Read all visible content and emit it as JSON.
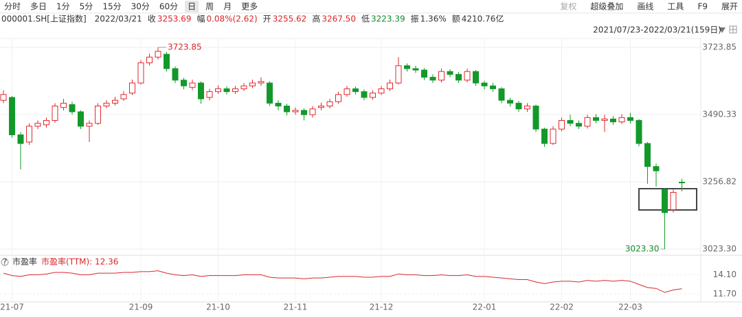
{
  "toolbar": {
    "tabs": [
      "分时",
      "多日",
      "1分",
      "5分",
      "15分",
      "30分",
      "60分",
      "日",
      "周",
      "月",
      "更多"
    ],
    "selected": 7,
    "tools": [
      "复权",
      "超级叠加",
      "画线",
      "工具",
      "F9",
      "展开"
    ]
  },
  "info": {
    "code": "000001.SH[上证指数]",
    "date": "2022/03/21",
    "items": [
      {
        "label": "收",
        "value": "3253.69",
        "color": "#d9262b"
      },
      {
        "label": "幅",
        "value": "0.08%(2.62)",
        "color": "#d9262b"
      },
      {
        "label": "开",
        "value": "3255.62",
        "color": "#d9262b"
      },
      {
        "label": "高",
        "value": "3267.50",
        "color": "#d9262b"
      },
      {
        "label": "低",
        "value": "3223.39",
        "color": "#138a2c"
      },
      {
        "label": "振",
        "value": "1.36%",
        "color": "#333333"
      },
      {
        "label": "额",
        "value": "4210.76亿",
        "color": "#333333"
      }
    ]
  },
  "chart_data": [
    {
      "type": "candlestick",
      "range_label": "2021/07/23-2022/03/21(159日)",
      "high_label": "3723.85",
      "low_label": "3023.30",
      "up_color": "#e0262c",
      "down_color": "#13992a",
      "grid": true,
      "categories": [
        null,
        "21-07",
        null,
        null,
        null,
        null,
        null,
        null,
        null,
        null,
        null,
        null,
        null,
        null,
        null,
        null,
        "21-09",
        null,
        null,
        null,
        null,
        null,
        null,
        null,
        null,
        "21-10",
        null,
        null,
        null,
        null,
        null,
        null,
        null,
        null,
        "21-11",
        null,
        null,
        null,
        null,
        null,
        null,
        null,
        null,
        null,
        "21-12",
        null,
        null,
        null,
        null,
        null,
        null,
        null,
        null,
        null,
        null,
        null,
        "22-01",
        null,
        null,
        null,
        null,
        null,
        null,
        null,
        null,
        "22-02",
        null,
        null,
        null,
        null,
        null,
        null,
        null,
        "22-03",
        null,
        null,
        null,
        null,
        null,
        null
      ],
      "open": [
        3540,
        3550,
        3420,
        3395,
        3450,
        3455,
        3470,
        3515,
        3525,
        3500,
        3450,
        3460,
        3520,
        3530,
        3545,
        3565,
        3600,
        3670,
        3690,
        3700,
        3650,
        3610,
        3585,
        3600,
        3550,
        3570,
        3580,
        3570,
        3580,
        3590,
        3600,
        3600,
        3530,
        3520,
        3500,
        3505,
        3490,
        3515,
        3520,
        3535,
        3560,
        3580,
        3570,
        3550,
        3565,
        3580,
        3600,
        3660,
        3650,
        3645,
        3620,
        3610,
        3640,
        3630,
        3610,
        3640,
        3600,
        3590,
        3580,
        3540,
        3530,
        3510,
        3520,
        3440,
        3390,
        3440,
        3470,
        3460,
        3450,
        3480,
        3470,
        3475,
        3465,
        3480,
        3470,
        3390,
        3310,
        3230,
        3160,
        3255.62
      ],
      "high": [
        3575,
        3555,
        3430,
        3460,
        3470,
        3480,
        3530,
        3545,
        3535,
        3505,
        3470,
        3530,
        3540,
        3552,
        3572,
        3612,
        3680,
        3702,
        3723.85,
        3708,
        3658,
        3618,
        3612,
        3606,
        3580,
        3592,
        3588,
        3590,
        3600,
        3612,
        3620,
        3606,
        3540,
        3528,
        3515,
        3512,
        3520,
        3532,
        3545,
        3570,
        3590,
        3588,
        3578,
        3575,
        3590,
        3612,
        3690,
        3668,
        3660,
        3652,
        3630,
        3650,
        3648,
        3638,
        3650,
        3645,
        3608,
        3600,
        3586,
        3548,
        3538,
        3530,
        3525,
        3445,
        3450,
        3480,
        3490,
        3470,
        3490,
        3492,
        3490,
        3485,
        3492,
        3496,
        3475,
        3395,
        3320,
        3235,
        3230,
        3267.5
      ],
      "low": [
        3530,
        3410,
        3300,
        3385,
        3440,
        3445,
        3462,
        3505,
        3490,
        3440,
        3395,
        3455,
        3512,
        3522,
        3538,
        3558,
        3595,
        3660,
        3682,
        3640,
        3600,
        3578,
        3575,
        3528,
        3540,
        3562,
        3560,
        3562,
        3572,
        3582,
        3590,
        3520,
        3505,
        3488,
        3490,
        3470,
        3480,
        3505,
        3512,
        3528,
        3552,
        3560,
        3540,
        3542,
        3558,
        3572,
        3595,
        3640,
        3635,
        3610,
        3600,
        3602,
        3620,
        3600,
        3602,
        3590,
        3578,
        3570,
        3530,
        3518,
        3500,
        3500,
        3430,
        3378,
        3385,
        3432,
        3450,
        3440,
        3442,
        3460,
        3430,
        3455,
        3458,
        3460,
        3380,
        3250,
        3240,
        3023.3,
        3150,
        3223.39
      ],
      "close": [
        3560,
        3420,
        3390,
        3450,
        3460,
        3470,
        3520,
        3530,
        3500,
        3450,
        3460,
        3520,
        3530,
        3540,
        3560,
        3600,
        3670,
        3690,
        3710,
        3650,
        3610,
        3590,
        3600,
        3545,
        3570,
        3580,
        3570,
        3580,
        3590,
        3600,
        3605,
        3530,
        3520,
        3500,
        3505,
        3490,
        3510,
        3520,
        3535,
        3560,
        3580,
        3570,
        3550,
        3565,
        3580,
        3600,
        3660,
        3650,
        3645,
        3620,
        3610,
        3640,
        3630,
        3610,
        3640,
        3600,
        3590,
        3580,
        3540,
        3530,
        3510,
        3520,
        3440,
        3390,
        3440,
        3470,
        3460,
        3450,
        3480,
        3470,
        3475,
        3465,
        3480,
        3470,
        3390,
        3310,
        3295,
        3150,
        3220,
        3253.69
      ],
      "ylim": [
        3001.8,
        3764.4
      ],
      "yticks": [
        3723.85,
        3490.33,
        3256.82,
        {
          "value": 3023.3,
          "label": "3023.30"
        }
      ]
    },
    {
      "type": "line",
      "icon": "?",
      "title": "市盈率",
      "legend": "市盈率(TTM): 12.36",
      "color": "#d9262b",
      "values": [
        14.3,
        14.0,
        13.9,
        14.1,
        14.1,
        14.2,
        14.4,
        14.4,
        14.3,
        14.1,
        14.1,
        14.3,
        14.3,
        14.3,
        14.4,
        14.4,
        14.5,
        14.5,
        14.6,
        14.3,
        14.1,
        14.0,
        14.1,
        13.9,
        14.0,
        14.0,
        14.0,
        14.0,
        14.1,
        14.1,
        14.1,
        13.8,
        13.7,
        13.7,
        13.7,
        13.6,
        13.7,
        13.7,
        13.8,
        13.9,
        13.9,
        13.9,
        13.8,
        13.8,
        13.9,
        13.9,
        14.2,
        14.1,
        14.1,
        14.0,
        14.0,
        14.1,
        14.0,
        14.0,
        14.1,
        13.9,
        13.9,
        13.8,
        13.7,
        13.6,
        13.5,
        13.5,
        13.2,
        13.0,
        13.2,
        13.3,
        13.3,
        13.2,
        13.4,
        13.3,
        13.4,
        13.3,
        13.4,
        13.3,
        12.9,
        12.5,
        12.4,
        11.9,
        12.2,
        12.36
      ],
      "ylim": [
        10.97,
        15.6
      ],
      "yticks": [
        {
          "value": 14.1,
          "label": "14.10"
        },
        {
          "value": 11.7,
          "label": "11.70"
        }
      ]
    }
  ]
}
